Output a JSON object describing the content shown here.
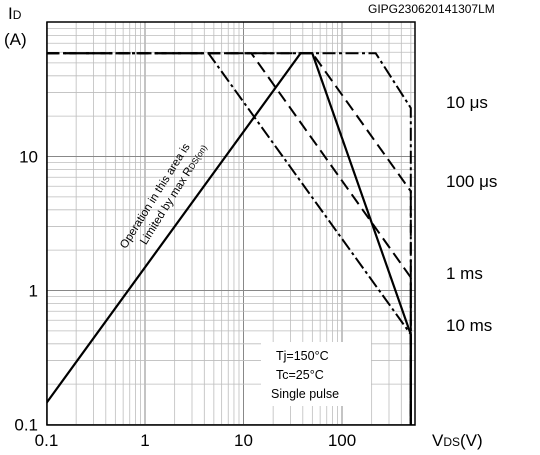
{
  "chart_data": {
    "type": "line",
    "title": "",
    "figure_id": "GIPG230620141307LM",
    "ylabel_main": "I",
    "ylabel_sub": "D",
    "ylabel_unit": "(A)",
    "xlabel_main": "V",
    "xlabel_sub": "DS",
    "xlabel_unit": "(V)",
    "x_scale": "log",
    "y_scale": "log",
    "xlim": [
      0.1,
      800
    ],
    "ylim": [
      0.1,
      100
    ],
    "grid": true,
    "x_ticks": [
      {
        "value": 0.1,
        "label": "0.1"
      },
      {
        "value": 1,
        "label": "1"
      },
      {
        "value": 10,
        "label": "10"
      },
      {
        "value": 100,
        "label": "100"
      }
    ],
    "y_ticks": [
      {
        "value": 0.1,
        "label": "0.1"
      },
      {
        "value": 1,
        "label": "1"
      },
      {
        "value": 10,
        "label": "10"
      }
    ],
    "series": [
      {
        "name": "10 μs",
        "style": "dashdot",
        "points": [
          [
            0.1,
            59
          ],
          [
            220,
            59
          ],
          [
            500,
            23
          ],
          [
            500,
            0.1
          ]
        ]
      },
      {
        "name": "100 μs",
        "style": "dash",
        "points": [
          [
            0.1,
            59
          ],
          [
            50,
            59
          ],
          [
            500,
            5.5
          ],
          [
            500,
            0.1
          ]
        ]
      },
      {
        "name": "1 ms",
        "style": "dash",
        "points": [
          [
            0.1,
            59
          ],
          [
            12,
            59
          ],
          [
            500,
            1.25
          ],
          [
            500,
            0.1
          ]
        ]
      },
      {
        "name": "10 ms",
        "style": "dashdot",
        "points": [
          [
            0.1,
            59
          ],
          [
            4.4,
            59
          ],
          [
            500,
            0.47
          ],
          [
            500,
            0.1
          ]
        ]
      },
      {
        "name": "RDS(on) limit",
        "style": "solid",
        "points": [
          [
            0.1,
            0.145
          ],
          [
            38,
            59
          ],
          [
            50,
            59
          ],
          [
            500,
            0.47
          ],
          [
            500,
            0.1
          ]
        ]
      }
    ],
    "annotation": {
      "line1": "Operation in this area is",
      "line2": "Limited by max R",
      "line2_sub": "DS(on)"
    },
    "conditions": [
      "Tj=150°C",
      "Tc=25°C",
      "Single pulse"
    ]
  }
}
